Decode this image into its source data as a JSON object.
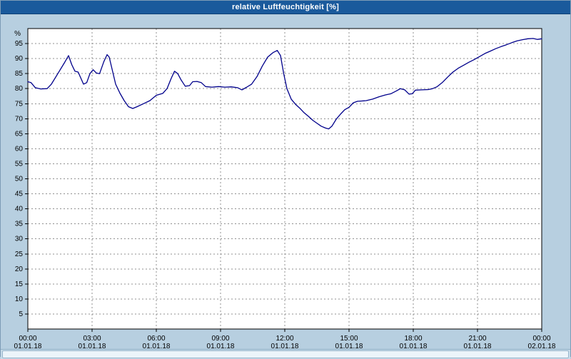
{
  "title": "relative Luftfeuchtigkeit [%]",
  "colors": {
    "titlebar": "#1a5a9c",
    "window_bg": "#b7cfe0",
    "plot_bg": "#ffffff",
    "grid": "#909090",
    "axis": "#000000",
    "line": "#00008b"
  },
  "chart_data": {
    "type": "line",
    "title": "relative Luftfeuchtigkeit [%]",
    "xlabel": "",
    "ylabel": "relative Luftfeuchtigkeit",
    "y_unit_label": "%",
    "grid": "dashed",
    "legend_position": "none",
    "xlim": [
      0,
      24
    ],
    "ylim": [
      0,
      100
    ],
    "y_ticks": [
      5,
      10,
      15,
      20,
      25,
      30,
      35,
      40,
      45,
      50,
      55,
      60,
      65,
      70,
      75,
      80,
      85,
      90,
      95
    ],
    "x_ticks": [
      {
        "hour": 0,
        "time": "00:00",
        "date": "01.01.18"
      },
      {
        "hour": 3,
        "time": "03:00",
        "date": "01.01.18"
      },
      {
        "hour": 6,
        "time": "06:00",
        "date": "01.01.18"
      },
      {
        "hour": 9,
        "time": "09:00",
        "date": "01.01.18"
      },
      {
        "hour": 12,
        "time": "12:00",
        "date": "01.01.18"
      },
      {
        "hour": 15,
        "time": "15:00",
        "date": "01.01.18"
      },
      {
        "hour": 18,
        "time": "18:00",
        "date": "01.01.18"
      },
      {
        "hour": 21,
        "time": "21:00",
        "date": "01.01.18"
      },
      {
        "hour": 24,
        "time": "00:00",
        "date": "02.01.18"
      }
    ],
    "series": [
      {
        "name": "relative Luftfeuchtigkeit [%]",
        "color": "#00008b",
        "points": [
          [
            0.0,
            82.3
          ],
          [
            0.15,
            82.0
          ],
          [
            0.35,
            80.3
          ],
          [
            0.6,
            79.9
          ],
          [
            0.9,
            80.0
          ],
          [
            1.1,
            81.5
          ],
          [
            1.4,
            85.0
          ],
          [
            1.7,
            88.5
          ],
          [
            1.9,
            91.0
          ],
          [
            2.05,
            88.0
          ],
          [
            2.2,
            85.8
          ],
          [
            2.35,
            85.5
          ],
          [
            2.6,
            81.5
          ],
          [
            2.75,
            82.0
          ],
          [
            2.9,
            85.0
          ],
          [
            3.05,
            86.3
          ],
          [
            3.2,
            85.2
          ],
          [
            3.35,
            85.0
          ],
          [
            3.55,
            89.0
          ],
          [
            3.7,
            91.3
          ],
          [
            3.8,
            90.5
          ],
          [
            3.95,
            86.0
          ],
          [
            4.1,
            81.5
          ],
          [
            4.3,
            78.5
          ],
          [
            4.5,
            76.0
          ],
          [
            4.7,
            74.0
          ],
          [
            4.9,
            73.4
          ],
          [
            5.1,
            74.0
          ],
          [
            5.4,
            75.0
          ],
          [
            5.7,
            76.0
          ],
          [
            6.0,
            77.8
          ],
          [
            6.3,
            78.4
          ],
          [
            6.5,
            80.0
          ],
          [
            6.7,
            83.5
          ],
          [
            6.85,
            85.8
          ],
          [
            7.0,
            85.0
          ],
          [
            7.15,
            83.0
          ],
          [
            7.35,
            80.8
          ],
          [
            7.55,
            81.0
          ],
          [
            7.7,
            82.3
          ],
          [
            7.9,
            82.4
          ],
          [
            8.1,
            82.0
          ],
          [
            8.3,
            80.7
          ],
          [
            8.6,
            80.5
          ],
          [
            8.9,
            80.7
          ],
          [
            9.2,
            80.5
          ],
          [
            9.5,
            80.6
          ],
          [
            9.8,
            80.3
          ],
          [
            10.0,
            79.6
          ],
          [
            10.2,
            80.4
          ],
          [
            10.45,
            81.5
          ],
          [
            10.7,
            84.0
          ],
          [
            10.95,
            87.5
          ],
          [
            11.2,
            90.5
          ],
          [
            11.45,
            92.0
          ],
          [
            11.65,
            92.7
          ],
          [
            11.8,
            91.0
          ],
          [
            11.95,
            85.0
          ],
          [
            12.1,
            80.0
          ],
          [
            12.3,
            76.5
          ],
          [
            12.5,
            74.8
          ],
          [
            12.7,
            73.5
          ],
          [
            12.9,
            72.0
          ],
          [
            13.1,
            70.8
          ],
          [
            13.3,
            69.5
          ],
          [
            13.5,
            68.5
          ],
          [
            13.7,
            67.5
          ],
          [
            13.9,
            66.9
          ],
          [
            14.05,
            66.6
          ],
          [
            14.2,
            67.5
          ],
          [
            14.4,
            69.8
          ],
          [
            14.6,
            71.5
          ],
          [
            14.8,
            73.0
          ],
          [
            15.0,
            73.8
          ],
          [
            15.2,
            75.3
          ],
          [
            15.4,
            75.8
          ],
          [
            15.6,
            75.9
          ],
          [
            15.8,
            76.0
          ],
          [
            16.1,
            76.5
          ],
          [
            16.4,
            77.3
          ],
          [
            16.7,
            77.9
          ],
          [
            16.95,
            78.3
          ],
          [
            17.2,
            79.2
          ],
          [
            17.4,
            80.0
          ],
          [
            17.6,
            79.6
          ],
          [
            17.8,
            78.2
          ],
          [
            17.95,
            78.3
          ],
          [
            18.1,
            79.5
          ],
          [
            18.4,
            79.6
          ],
          [
            18.7,
            79.7
          ],
          [
            18.9,
            80.0
          ],
          [
            19.1,
            80.6
          ],
          [
            19.35,
            82.0
          ],
          [
            19.6,
            83.8
          ],
          [
            19.85,
            85.5
          ],
          [
            20.1,
            86.8
          ],
          [
            20.35,
            87.8
          ],
          [
            20.6,
            88.8
          ],
          [
            20.85,
            89.7
          ],
          [
            21.1,
            90.7
          ],
          [
            21.35,
            91.7
          ],
          [
            21.6,
            92.5
          ],
          [
            21.85,
            93.3
          ],
          [
            22.1,
            94.0
          ],
          [
            22.35,
            94.6
          ],
          [
            22.6,
            95.3
          ],
          [
            22.85,
            95.9
          ],
          [
            23.1,
            96.3
          ],
          [
            23.35,
            96.6
          ],
          [
            23.6,
            96.7
          ],
          [
            23.8,
            96.4
          ],
          [
            24.0,
            96.6
          ]
        ]
      }
    ]
  }
}
